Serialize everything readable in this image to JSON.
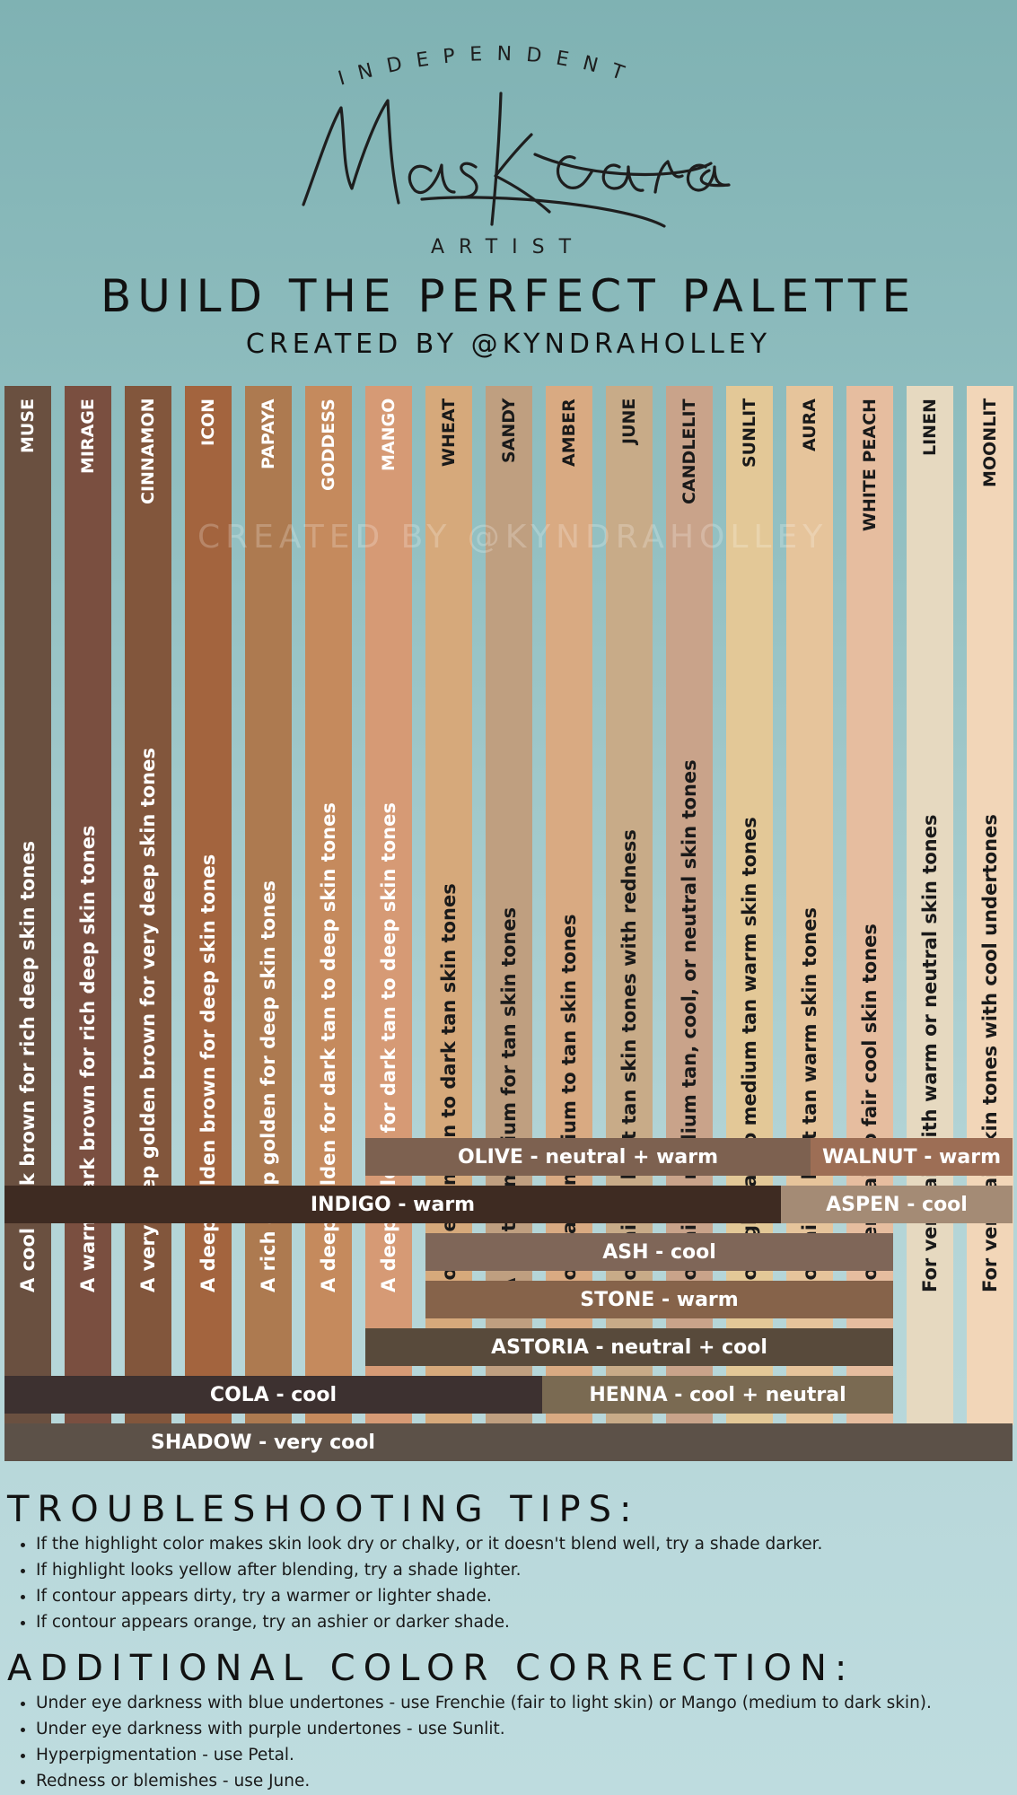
{
  "logo": {
    "top_text": "INDEPENDENT",
    "script_text": "Maskcara",
    "bottom_text": "ARTIST"
  },
  "header": {
    "title": "BUILD THE PERFECT PALETTE",
    "subtitle": "CREATED BY @KYNDRAHOLLEY"
  },
  "watermark": "CREATED BY @KYNDRAHOLLEY",
  "shades": [
    {
      "name": "MUSE",
      "desc": "A cool dark brown for rich deep skin tones",
      "color": "#6a5040",
      "text": "#ffffff"
    },
    {
      "name": "MIRAGE",
      "desc": "A warm dark brown for rich deep skin tones",
      "color": "#7a4f40",
      "text": "#ffffff"
    },
    {
      "name": "CINNAMON",
      "desc": "A very deep golden brown for very deep skin tones",
      "color": "#82563c",
      "text": "#ffffff"
    },
    {
      "name": "ICON",
      "desc": "A deep golden brown for deep skin tones",
      "color": "#a3643e",
      "text": "#ffffff"
    },
    {
      "name": "PAPAYA",
      "desc": "A rich deep golden for deep skin tones",
      "color": "#ad7a50",
      "text": "#ffffff"
    },
    {
      "name": "GODDESS",
      "desc": "A deep golden for dark tan to deep skin tones",
      "color": "#c58a5d",
      "text": "#ffffff"
    },
    {
      "name": "MANGO",
      "desc": "A deep golden for dark tan to deep skin tones",
      "color": "#d69a75",
      "text": "#ffffff"
    },
    {
      "name": "WHEAT",
      "desc": "For medium tan to dark tan skin tones",
      "color": "#d6a97b",
      "text": "#1a1a1a"
    },
    {
      "name": "SANDY",
      "desc": "A neutral medium for tan skin tones",
      "color": "#bf9f80",
      "text": "#1a1a1a"
    },
    {
      "name": "AMBER",
      "desc": "For warm medium to tan skin tones",
      "color": "#d9aa82",
      "text": "#1a1a1a"
    },
    {
      "name": "JUNE",
      "desc": "For fair to light tan skin tones with redness",
      "color": "#c8ab88",
      "text": "#1a1a1a"
    },
    {
      "name": "CANDLELIT",
      "desc": "For fair to medium tan, cool, or neutral skin tones",
      "color": "#c9a38a",
      "text": "#1a1a1a"
    },
    {
      "name": "SUNLIT",
      "desc": "For light tan to medium tan warm skin tones",
      "color": "#e3c897",
      "text": "#1a1a1a"
    },
    {
      "name": "AURA",
      "desc": "For fair to light tan warm skin tones",
      "color": "#e6c49b",
      "text": "#1a1a1a"
    },
    {
      "name": "WHITE PEACH",
      "desc": "For very fair to fair cool skin tones",
      "color": "#e6bd9f",
      "text": "#1a1a1a"
    },
    {
      "name": "LINEN",
      "desc": "For very fair with warm or neutral skin tones",
      "color": "#e6d9c0",
      "text": "#1a1a1a"
    },
    {
      "name": "MOONLIT",
      "desc": "For very fair skin tones with cool undertones",
      "color": "#f2d6b8",
      "text": "#1a1a1a"
    }
  ],
  "contours": [
    {
      "label": "OLIVE - neutral + warm",
      "from": "MANGO",
      "to": "AURA",
      "color": "#7d6150"
    },
    {
      "label": "WALNUT - warm",
      "from": "AURA",
      "to": "MOONLIT",
      "color": "#9d6e55"
    },
    {
      "label": "INDIGO - warm",
      "from": "MUSE",
      "to": "AURA",
      "color": "#3e2b22"
    },
    {
      "label": "ASPEN - cool",
      "from": "AURA",
      "to": "MOONLIT",
      "color": "#a48b75"
    },
    {
      "label": "ASH - cool",
      "from": "WHEAT",
      "to": "WHITE PEACH",
      "color": "#7f6658"
    },
    {
      "label": "STONE - warm",
      "from": "WHEAT",
      "to": "WHITE PEACH",
      "color": "#86634a"
    },
    {
      "label": "ASTORIA - neutral + cool",
      "from": "MANGO",
      "to": "WHITE PEACH",
      "color": "#584a3b"
    },
    {
      "label": "COLA - cool",
      "from": "MUSE",
      "to": "AMBER",
      "color": "#3d3130"
    },
    {
      "label": "HENNA - cool + neutral",
      "from": "AMBER",
      "to": "WHITE PEACH",
      "color": "#7a6a52"
    },
    {
      "label": "SHADOW - very cool",
      "from": "MUSE",
      "to": "MOONLIT",
      "color": "#5c5148"
    }
  ],
  "troubleshooting": {
    "title": "TROUBLESHOOTING TIPS:",
    "items": [
      "If the highlight color makes skin look dry or chalky, or it doesn't blend well, try a shade darker.",
      "If highlight looks yellow after blending, try a shade lighter.",
      "If contour appears dirty, try a warmer or lighter shade.",
      "If contour appears orange, try an ashier or darker shade."
    ]
  },
  "color_correction": {
    "title": "ADDITIONAL COLOR CORRECTION:",
    "items": [
      "Under eye darkness with blue undertones - use Frenchie (fair to light skin) or Mango (medium to dark skin).",
      "Under eye darkness with purple undertones - use Sunlit.",
      "Hyperpigmentation - use Petal.",
      "Redness or blemishes - use June."
    ]
  }
}
